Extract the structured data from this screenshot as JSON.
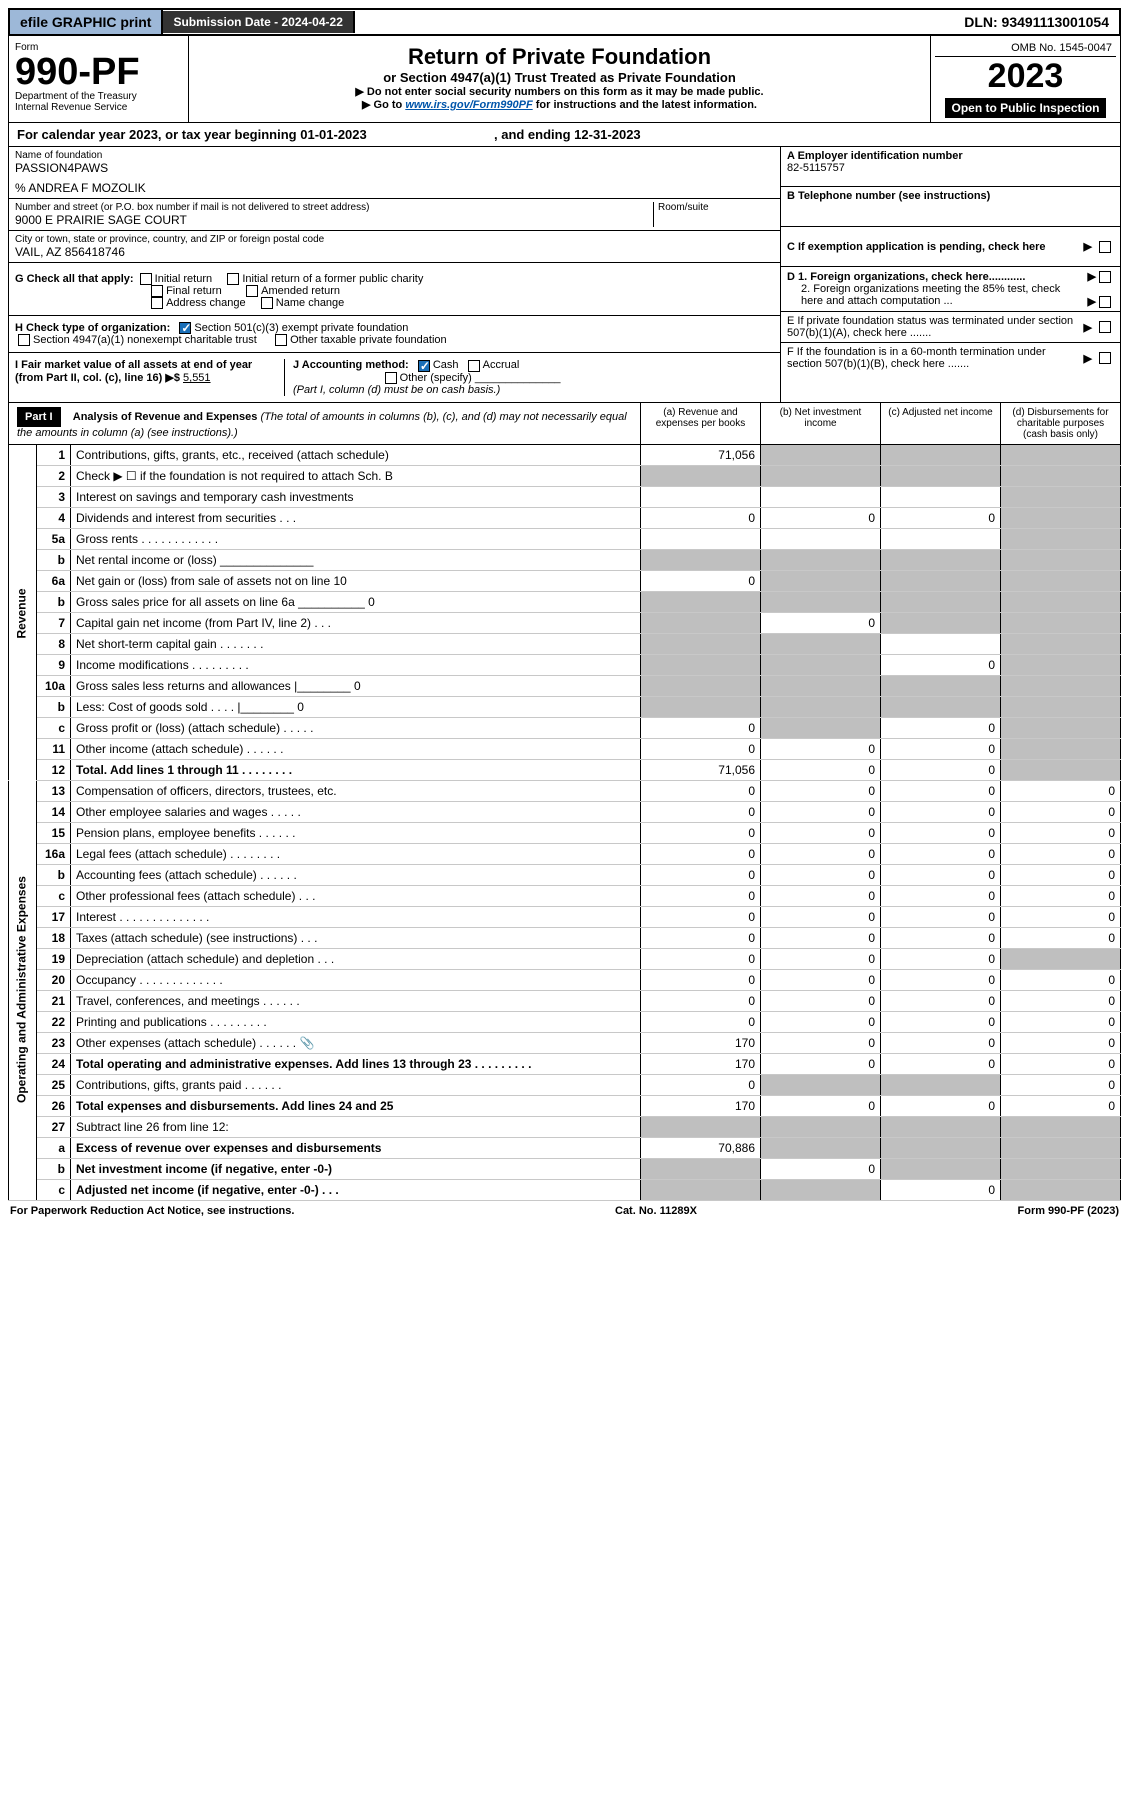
{
  "topbar": {
    "efile": "efile GRAPHIC print",
    "submission_label": "Submission Date - 2024-04-22",
    "dln": "DLN: 93491113001054"
  },
  "header": {
    "form_word": "Form",
    "form_no": "990-PF",
    "dept1": "Department of the Treasury",
    "dept2": "Internal Revenue Service",
    "title": "Return of Private Foundation",
    "subtitle": "or Section 4947(a)(1) Trust Treated as Private Foundation",
    "note1": "▶ Do not enter social security numbers on this form as it may be made public.",
    "note2_pre": "▶ Go to ",
    "note2_link": "www.irs.gov/Form990PF",
    "note2_post": " for instructions and the latest information.",
    "omb": "OMB No. 1545-0047",
    "year": "2023",
    "open": "Open to Public Inspection"
  },
  "cal": {
    "text_pre": "For calendar year 2023, or tax year beginning ",
    "begin": "01-01-2023",
    "mid": " , and ending ",
    "end": "12-31-2023"
  },
  "info": {
    "name_lbl": "Name of foundation",
    "name": "PASSION4PAWS",
    "care_of": "% ANDREA F MOZOLIK",
    "addr_lbl": "Number and street (or P.O. box number if mail is not delivered to street address)",
    "addr": "9000 E PRAIRIE SAGE COURT",
    "room_lbl": "Room/suite",
    "city_lbl": "City or town, state or province, country, and ZIP or foreign postal code",
    "city": "VAIL, AZ  856418746",
    "a_lbl": "A Employer identification number",
    "a_val": "82-5115757",
    "b_lbl": "B Telephone number (see instructions)",
    "c_lbl": "C If exemption application is pending, check here",
    "d1_lbl": "D 1. Foreign organizations, check here............",
    "d2_lbl": "2. Foreign organizations meeting the 85% test, check here and attach computation ...",
    "e_lbl": "E  If private foundation status was terminated under section 507(b)(1)(A), check here .......",
    "f_lbl": "F  If the foundation is in a 60-month termination under section 507(b)(1)(B), check here .......",
    "g_lbl": "G Check all that apply:",
    "g_opts": [
      "Initial return",
      "Initial return of a former public charity",
      "Final return",
      "Amended return",
      "Address change",
      "Name change"
    ],
    "h_lbl": "H Check type of organization:",
    "h_opts": [
      "Section 501(c)(3) exempt private foundation",
      "Section 4947(a)(1) nonexempt charitable trust",
      "Other taxable private foundation"
    ],
    "i_lbl": "I Fair market value of all assets at end of year (from Part II, col. (c), line 16) ▶$",
    "i_val": "5,551",
    "j_lbl": "J Accounting method:",
    "j_opts": [
      "Cash",
      "Accrual",
      "Other (specify)"
    ],
    "j_note": "(Part I, column (d) must be on cash basis.)"
  },
  "part1": {
    "label": "Part I",
    "title": "Analysis of Revenue and Expenses",
    "title_note": " (The total of amounts in columns (b), (c), and (d) may not necessarily equal the amounts in column (a) (see instructions).)",
    "col_a": "(a)   Revenue and expenses per books",
    "col_b": "(b)   Net investment income",
    "col_c": "(c)   Adjusted net income",
    "col_d": "(d)   Disbursements for charitable purposes (cash basis only)"
  },
  "side_labels": {
    "revenue": "Revenue",
    "expenses": "Operating and Administrative Expenses"
  },
  "rows": [
    {
      "ln": "1",
      "desc": "Contributions, gifts, grants, etc., received (attach schedule)",
      "a": "71,056",
      "b": "",
      "c": "",
      "d": "",
      "shade_b": true,
      "shade_c": true,
      "shade_d": true
    },
    {
      "ln": "2",
      "desc": "Check ▶ ☐ if the foundation is not required to attach Sch. B",
      "a": "",
      "b": "",
      "c": "",
      "d": "",
      "shade_a": true,
      "shade_b": true,
      "shade_c": true,
      "shade_d": true,
      "bold_not": true
    },
    {
      "ln": "3",
      "desc": "Interest on savings and temporary cash investments",
      "a": "",
      "b": "",
      "c": "",
      "d": "",
      "shade_d": true
    },
    {
      "ln": "4",
      "desc": "Dividends and interest from securities   .   .   .",
      "a": "0",
      "b": "0",
      "c": "0",
      "d": "",
      "shade_d": true
    },
    {
      "ln": "5a",
      "desc": "Gross rents   .   .   .   .   .   .   .   .   .   .   .   .",
      "a": "",
      "b": "",
      "c": "",
      "d": "",
      "shade_d": true
    },
    {
      "ln": "b",
      "desc": "Net rental income or (loss)  ______________",
      "a": "",
      "b": "",
      "c": "",
      "d": "",
      "shade_a": true,
      "shade_b": true,
      "shade_c": true,
      "shade_d": true
    },
    {
      "ln": "6a",
      "desc": "Net gain or (loss) from sale of assets not on line 10",
      "a": "0",
      "b": "",
      "c": "",
      "d": "",
      "shade_b": true,
      "shade_c": true,
      "shade_d": true
    },
    {
      "ln": "b",
      "desc": "Gross sales price for all assets on line 6a __________ 0",
      "a": "",
      "b": "",
      "c": "",
      "d": "",
      "shade_a": true,
      "shade_b": true,
      "shade_c": true,
      "shade_d": true
    },
    {
      "ln": "7",
      "desc": "Capital gain net income (from Part IV, line 2)   .   .   .",
      "a": "",
      "b": "0",
      "c": "",
      "d": "",
      "shade_a": true,
      "shade_c": true,
      "shade_d": true
    },
    {
      "ln": "8",
      "desc": "Net short-term capital gain   .   .   .   .   .   .   .",
      "a": "",
      "b": "",
      "c": "",
      "d": "",
      "shade_a": true,
      "shade_b": true,
      "shade_d": true
    },
    {
      "ln": "9",
      "desc": "Income modifications   .   .   .   .   .   .   .   .   .",
      "a": "",
      "b": "",
      "c": "0",
      "d": "",
      "shade_a": true,
      "shade_b": true,
      "shade_d": true
    },
    {
      "ln": "10a",
      "desc": "Gross sales less returns and allowances  |________ 0",
      "a": "",
      "b": "",
      "c": "",
      "d": "",
      "shade_a": true,
      "shade_b": true,
      "shade_c": true,
      "shade_d": true
    },
    {
      "ln": "b",
      "desc": "Less: Cost of goods sold   .   .   .   .   |________ 0",
      "a": "",
      "b": "",
      "c": "",
      "d": "",
      "shade_a": true,
      "shade_b": true,
      "shade_c": true,
      "shade_d": true
    },
    {
      "ln": "c",
      "desc": "Gross profit or (loss) (attach schedule)   .   .   .   .   .",
      "a": "0",
      "b": "",
      "c": "0",
      "d": "",
      "shade_b": true,
      "shade_d": true
    },
    {
      "ln": "11",
      "desc": "Other income (attach schedule)   .   .   .   .   .   .",
      "a": "0",
      "b": "0",
      "c": "0",
      "d": "",
      "shade_d": true
    },
    {
      "ln": "12",
      "desc": "Total. Add lines 1 through 11   .   .   .   .   .   .   .   .",
      "a": "71,056",
      "b": "0",
      "c": "0",
      "d": "",
      "bold": true,
      "shade_d": true
    },
    {
      "ln": "13",
      "desc": "Compensation of officers, directors, trustees, etc.",
      "a": "0",
      "b": "0",
      "c": "0",
      "d": "0"
    },
    {
      "ln": "14",
      "desc": "Other employee salaries and wages   .   .   .   .   .",
      "a": "0",
      "b": "0",
      "c": "0",
      "d": "0"
    },
    {
      "ln": "15",
      "desc": "Pension plans, employee benefits   .   .   .   .   .   .",
      "a": "0",
      "b": "0",
      "c": "0",
      "d": "0"
    },
    {
      "ln": "16a",
      "desc": "Legal fees (attach schedule)   .   .   .   .   .   .   .   .",
      "a": "0",
      "b": "0",
      "c": "0",
      "d": "0"
    },
    {
      "ln": "b",
      "desc": "Accounting fees (attach schedule)   .   .   .   .   .   .",
      "a": "0",
      "b": "0",
      "c": "0",
      "d": "0"
    },
    {
      "ln": "c",
      "desc": "Other professional fees (attach schedule)    .   .   .",
      "a": "0",
      "b": "0",
      "c": "0",
      "d": "0"
    },
    {
      "ln": "17",
      "desc": "Interest   .   .   .   .   .   .   .   .   .   .   .   .   .   .",
      "a": "0",
      "b": "0",
      "c": "0",
      "d": "0"
    },
    {
      "ln": "18",
      "desc": "Taxes (attach schedule) (see instructions)    .   .   .",
      "a": "0",
      "b": "0",
      "c": "0",
      "d": "0"
    },
    {
      "ln": "19",
      "desc": "Depreciation (attach schedule) and depletion    .   .   .",
      "a": "0",
      "b": "0",
      "c": "0",
      "d": "",
      "shade_d": true
    },
    {
      "ln": "20",
      "desc": "Occupancy   .   .   .   .   .   .   .   .   .   .   .   .   .",
      "a": "0",
      "b": "0",
      "c": "0",
      "d": "0"
    },
    {
      "ln": "21",
      "desc": "Travel, conferences, and meetings   .   .   .   .   .   .",
      "a": "0",
      "b": "0",
      "c": "0",
      "d": "0"
    },
    {
      "ln": "22",
      "desc": "Printing and publications   .   .   .   .   .   .   .   .   .",
      "a": "0",
      "b": "0",
      "c": "0",
      "d": "0"
    },
    {
      "ln": "23",
      "desc": "Other expenses (attach schedule)   .   .   .   .   .   . 📎",
      "a": "170",
      "b": "0",
      "c": "0",
      "d": "0"
    },
    {
      "ln": "24",
      "desc": "Total operating and administrative expenses. Add lines 13 through 23   .   .   .   .   .   .   .   .   .",
      "a": "170",
      "b": "0",
      "c": "0",
      "d": "0",
      "bold": true
    },
    {
      "ln": "25",
      "desc": "Contributions, gifts, grants paid    .   .   .   .   .   .",
      "a": "0",
      "b": "",
      "c": "",
      "d": "0",
      "shade_b": true,
      "shade_c": true
    },
    {
      "ln": "26",
      "desc": "Total expenses and disbursements. Add lines 24 and 25",
      "a": "170",
      "b": "0",
      "c": "0",
      "d": "0",
      "bold": true
    },
    {
      "ln": "27",
      "desc": "Subtract line 26 from line 12:",
      "a": "",
      "b": "",
      "c": "",
      "d": "",
      "shade_a": true,
      "shade_b": true,
      "shade_c": true,
      "shade_d": true
    },
    {
      "ln": "a",
      "desc": "Excess of revenue over expenses and disbursements",
      "a": "70,886",
      "b": "",
      "c": "",
      "d": "",
      "bold": true,
      "shade_b": true,
      "shade_c": true,
      "shade_d": true
    },
    {
      "ln": "b",
      "desc": "Net investment income (if negative, enter -0-)",
      "a": "",
      "b": "0",
      "c": "",
      "d": "",
      "bold": true,
      "shade_a": true,
      "shade_c": true,
      "shade_d": true
    },
    {
      "ln": "c",
      "desc": "Adjusted net income (if negative, enter -0-)   .   .   .",
      "a": "",
      "b": "",
      "c": "0",
      "d": "",
      "bold": true,
      "shade_a": true,
      "shade_b": true,
      "shade_d": true
    }
  ],
  "footer": {
    "left": "For Paperwork Reduction Act Notice, see instructions.",
    "mid": "Cat. No. 11289X",
    "right": "Form 990-PF (2023)"
  }
}
